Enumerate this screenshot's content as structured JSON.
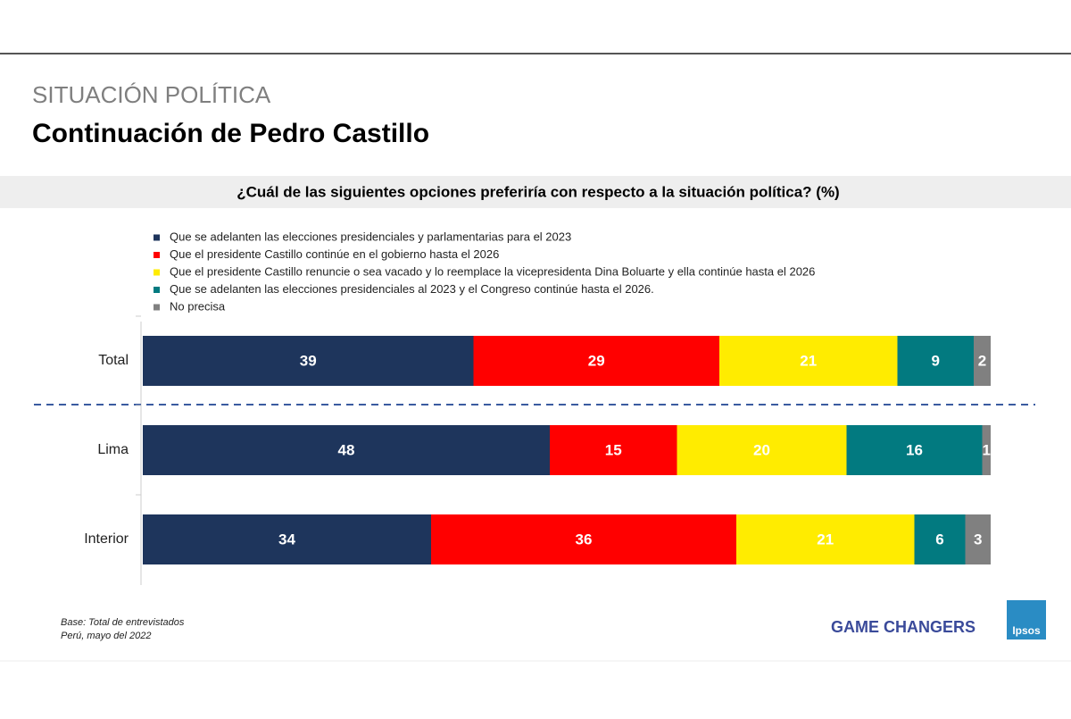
{
  "header": {
    "section": "SITUACIÓN POLÍTICA",
    "title": "Continuación de Pedro Castillo"
  },
  "chart_data": {
    "type": "bar",
    "orientation": "horizontal",
    "stacked": true,
    "title": "¿Cuál de las siguientes opciones preferiría con respecto a la situación política? (%)",
    "categories": [
      "Total",
      "Lima",
      "Interior"
    ],
    "series": [
      {
        "name": "Que se adelanten las elecciones presidenciales y parlamentarias para el 2023",
        "color": "#1e355c",
        "values": [
          39,
          48,
          34
        ]
      },
      {
        "name": "Que el presidente Castillo continúe en el gobierno hasta el 2026",
        "color": "#ff0000",
        "values": [
          29,
          15,
          36
        ]
      },
      {
        "name": "Que el presidente Castillo renuncie o sea vacado y lo reemplace la vicepresidenta Dina Boluarte y ella continúe hasta el 2026",
        "color": "#ffec00",
        "values": [
          21,
          20,
          21
        ]
      },
      {
        "name": "Que se adelanten las elecciones presidenciales al 2023 y el Congreso continúe hasta el 2026.",
        "color": "#027a80",
        "values": [
          9,
          16,
          6
        ]
      },
      {
        "name": "No precisa",
        "color": "#808080",
        "values": [
          2,
          1,
          3
        ]
      }
    ],
    "xlim": [
      0,
      100
    ]
  },
  "footer": {
    "notes": [
      "Base: Total de entrevistados",
      "Perú, mayo del 2022"
    ],
    "tagline": "GAME CHANGERS",
    "logo": "Ipsos"
  }
}
